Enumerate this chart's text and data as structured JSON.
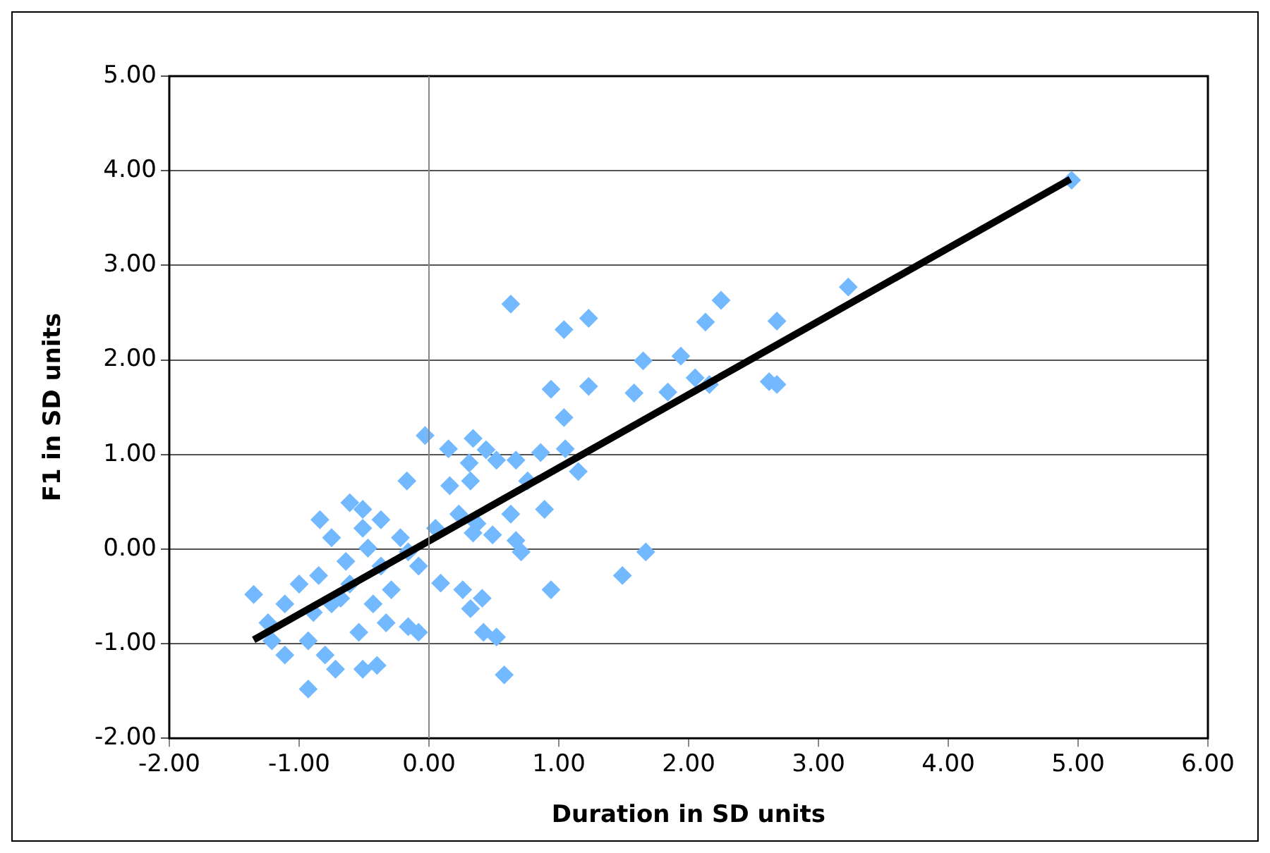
{
  "chart_data": {
    "type": "scatter",
    "xlabel": "Duration in SD units",
    "ylabel": "F1 in SD units",
    "xlim": [
      -2,
      6
    ],
    "ylim": [
      -2,
      5
    ],
    "xticks": [
      {
        "value": -2,
        "label": "-2.00"
      },
      {
        "value": -1,
        "label": "-1.00"
      },
      {
        "value": 0,
        "label": "0.00"
      },
      {
        "value": 1,
        "label": "1.00"
      },
      {
        "value": 2,
        "label": "2.00"
      },
      {
        "value": 3,
        "label": "3.00"
      },
      {
        "value": 4,
        "label": "4.00"
      },
      {
        "value": 5,
        "label": "5.00"
      },
      {
        "value": 6,
        "label": "6.00"
      }
    ],
    "yticks": [
      {
        "value": -2,
        "label": "-2.00"
      },
      {
        "value": -1,
        "label": "-1.00"
      },
      {
        "value": 0,
        "label": "0.00"
      },
      {
        "value": 1,
        "label": "1.00"
      },
      {
        "value": 2,
        "label": "2.00"
      },
      {
        "value": 3,
        "label": "3.00"
      },
      {
        "value": 4,
        "label": "4.00"
      },
      {
        "value": 5,
        "label": "5.00"
      }
    ],
    "grid": "y",
    "legend": false,
    "marker": "diamond",
    "series": [
      {
        "color": "#73b9ff",
        "x": [
          4.95,
          3.23,
          0.63,
          1.04,
          1.23,
          2.25,
          2.13,
          2.68,
          1.65,
          1.94,
          0.94,
          1.23,
          1.58,
          1.84,
          2.05,
          2.16,
          2.62,
          2.68,
          1.04,
          1.05,
          1.15,
          0.86,
          0.67,
          0.76,
          0.89,
          0.67,
          0.71,
          0.34,
          0.44,
          0.52,
          0.15,
          0.31,
          0.16,
          0.32,
          -0.03,
          0.05,
          0.23,
          0.37,
          0.49,
          0.63,
          0.34,
          1.67,
          1.49,
          0.94,
          0.09,
          0.26,
          0.32,
          0.42,
          0.52,
          0.58,
          -0.08,
          -0.08,
          -0.17,
          -0.84,
          -0.61,
          -0.51,
          -0.37,
          -0.22,
          -0.16,
          -0.75,
          -0.64,
          -0.47,
          -0.85,
          -1.0,
          -1.11,
          -1.35,
          -1.24,
          -1.21,
          -1.11,
          -0.93,
          -0.8,
          -0.72,
          -0.93,
          -0.51,
          -0.4,
          -0.54,
          -0.33,
          -0.16,
          -0.29,
          -0.68,
          -0.43,
          -0.89,
          0.41,
          -0.75,
          -0.51,
          -0.61,
          -0.37
        ],
        "values": [
          3.9,
          2.77,
          2.59,
          2.32,
          2.44,
          2.63,
          2.4,
          2.41,
          1.99,
          2.04,
          1.69,
          1.72,
          1.65,
          1.66,
          1.81,
          1.74,
          1.77,
          1.74,
          1.39,
          1.06,
          0.82,
          1.02,
          0.94,
          0.72,
          0.42,
          0.09,
          -0.03,
          1.17,
          1.05,
          0.94,
          1.06,
          0.91,
          0.67,
          0.72,
          1.2,
          0.22,
          0.37,
          0.27,
          0.15,
          0.37,
          0.17,
          -0.03,
          -0.28,
          -0.43,
          -0.36,
          -0.43,
          -0.63,
          -0.88,
          -0.93,
          -1.33,
          -0.18,
          -0.88,
          0.72,
          0.31,
          0.49,
          0.42,
          0.31,
          0.12,
          -0.03,
          0.12,
          -0.13,
          0.01,
          -0.28,
          -0.37,
          -0.58,
          -0.48,
          -0.78,
          -0.97,
          -1.12,
          -0.97,
          -1.12,
          -1.27,
          -1.48,
          -1.27,
          -1.23,
          -0.88,
          -0.78,
          -0.82,
          -0.43,
          -0.52,
          -0.58,
          -0.67,
          -0.52,
          -0.58,
          0.22,
          -0.37,
          -0.18
        ]
      },
      {
        "type": "line",
        "marker": "none",
        "color": "#000000",
        "x": [
          -1.35,
          4.94
        ],
        "values": [
          -0.96,
          3.91
        ]
      }
    ]
  }
}
